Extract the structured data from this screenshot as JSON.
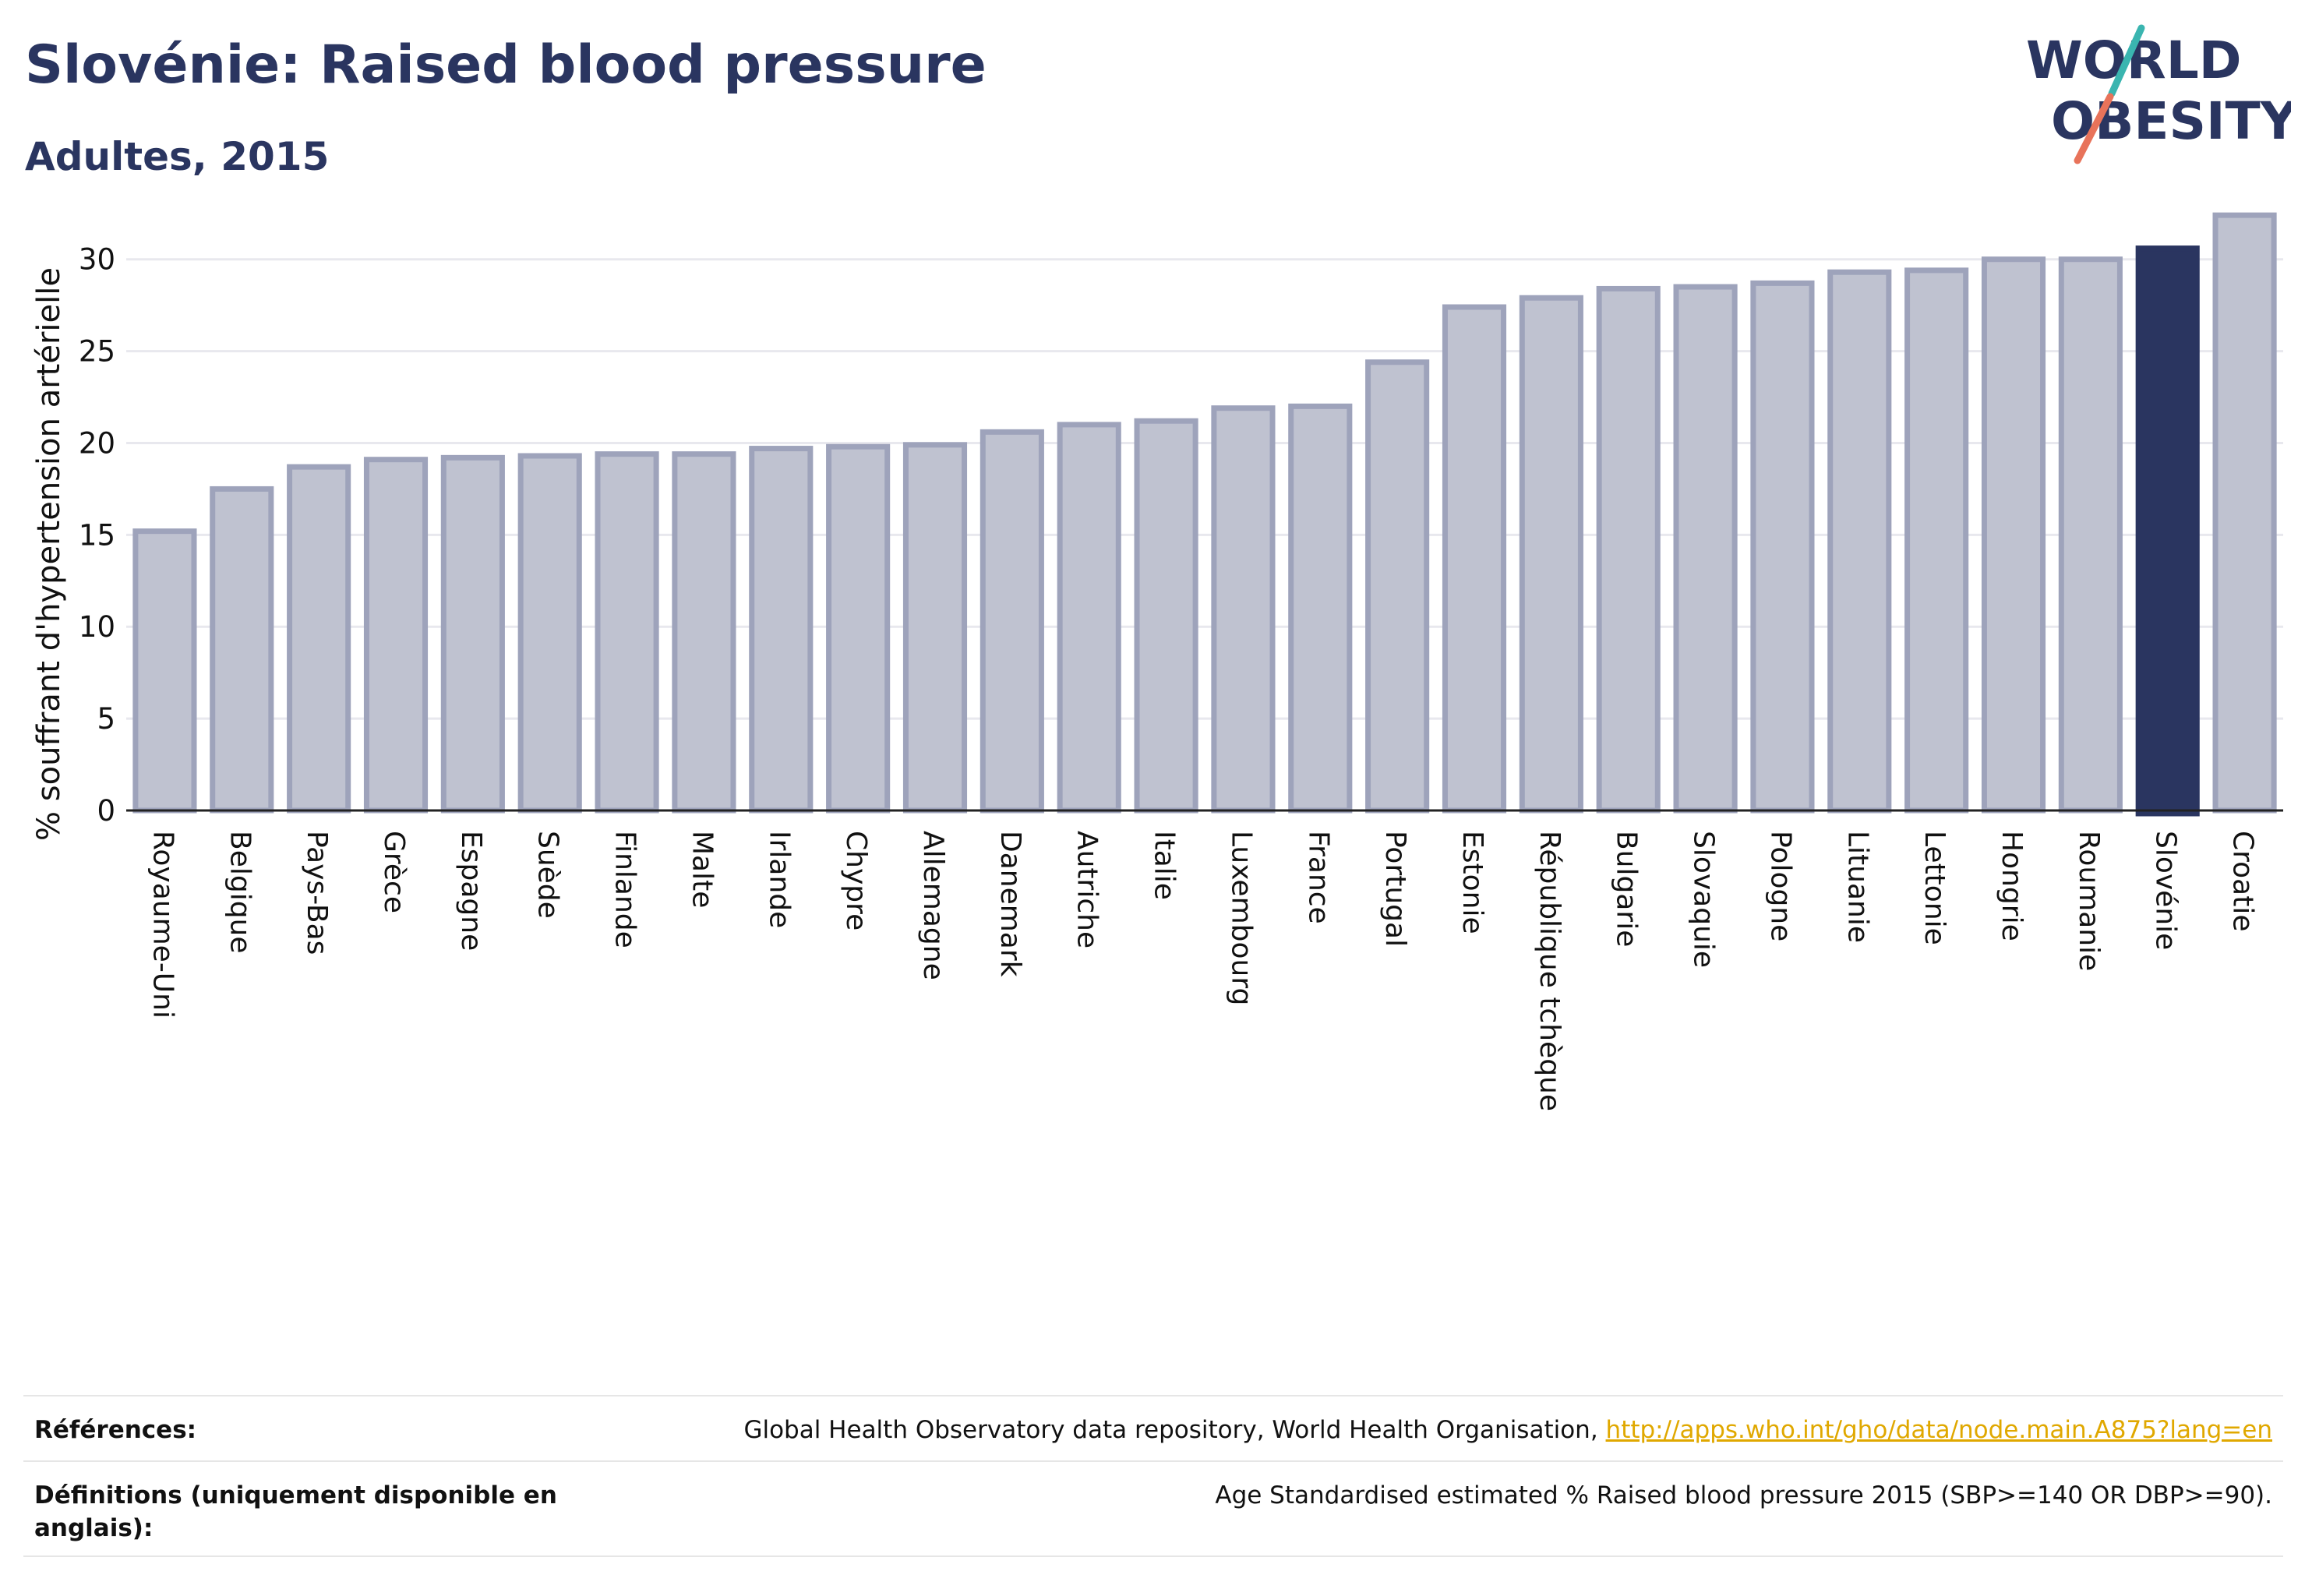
{
  "header": {
    "title": "Slovénie: Raised blood pressure",
    "subtitle": "Adultes, 2015"
  },
  "logo": {
    "line1": "WORLD",
    "line2": "OBESITY",
    "text_color": "#2a3560",
    "slash_top_color": "#3ab5b0",
    "slash_bottom_color": "#e8735a"
  },
  "chart_data": {
    "type": "bar",
    "ylabel": "% souffrant d'hypertension artérielle",
    "ylim": [
      0,
      33
    ],
    "yticks": [
      0,
      5,
      10,
      15,
      20,
      25,
      30
    ],
    "grid": true,
    "highlight": "Slovénie",
    "bar_color": "#bfc2d0",
    "bar_border_color": "#9ea3bb",
    "highlight_color": "#2a3560",
    "categories": [
      "Royaume-Uni",
      "Belgique",
      "Pays-Bas",
      "Grèce",
      "Espagne",
      "Suède",
      "Finlande",
      "Malte",
      "Irlande",
      "Chypre",
      "Allemagne",
      "Danemark",
      "Autriche",
      "Italie",
      "Luxembourg",
      "France",
      "Portugal",
      "Estonie",
      "République tchèque",
      "Bulgarie",
      "Slovaquie",
      "Pologne",
      "Lituanie",
      "Lettonie",
      "Hongrie",
      "Roumanie",
      "Slovénie",
      "Croatie"
    ],
    "values": [
      15.2,
      17.5,
      18.7,
      19.1,
      19.2,
      19.3,
      19.4,
      19.4,
      19.7,
      19.8,
      19.9,
      20.6,
      21.0,
      21.2,
      21.9,
      22.0,
      24.4,
      27.4,
      27.9,
      28.4,
      28.5,
      28.7,
      29.3,
      29.4,
      30.0,
      30.0,
      30.6,
      32.4
    ]
  },
  "references": {
    "label": "Références:",
    "text": "Global Health Observatory data repository, World Health Organisation, ",
    "link": "http://apps.who.int/gho/data/node.main.A875?lang=en"
  },
  "definitions": {
    "label": "Définitions (uniquement disponible en anglais):",
    "text": "Age Standardised estimated % Raised blood pressure 2015 (SBP>=140 OR DBP>=90)."
  }
}
